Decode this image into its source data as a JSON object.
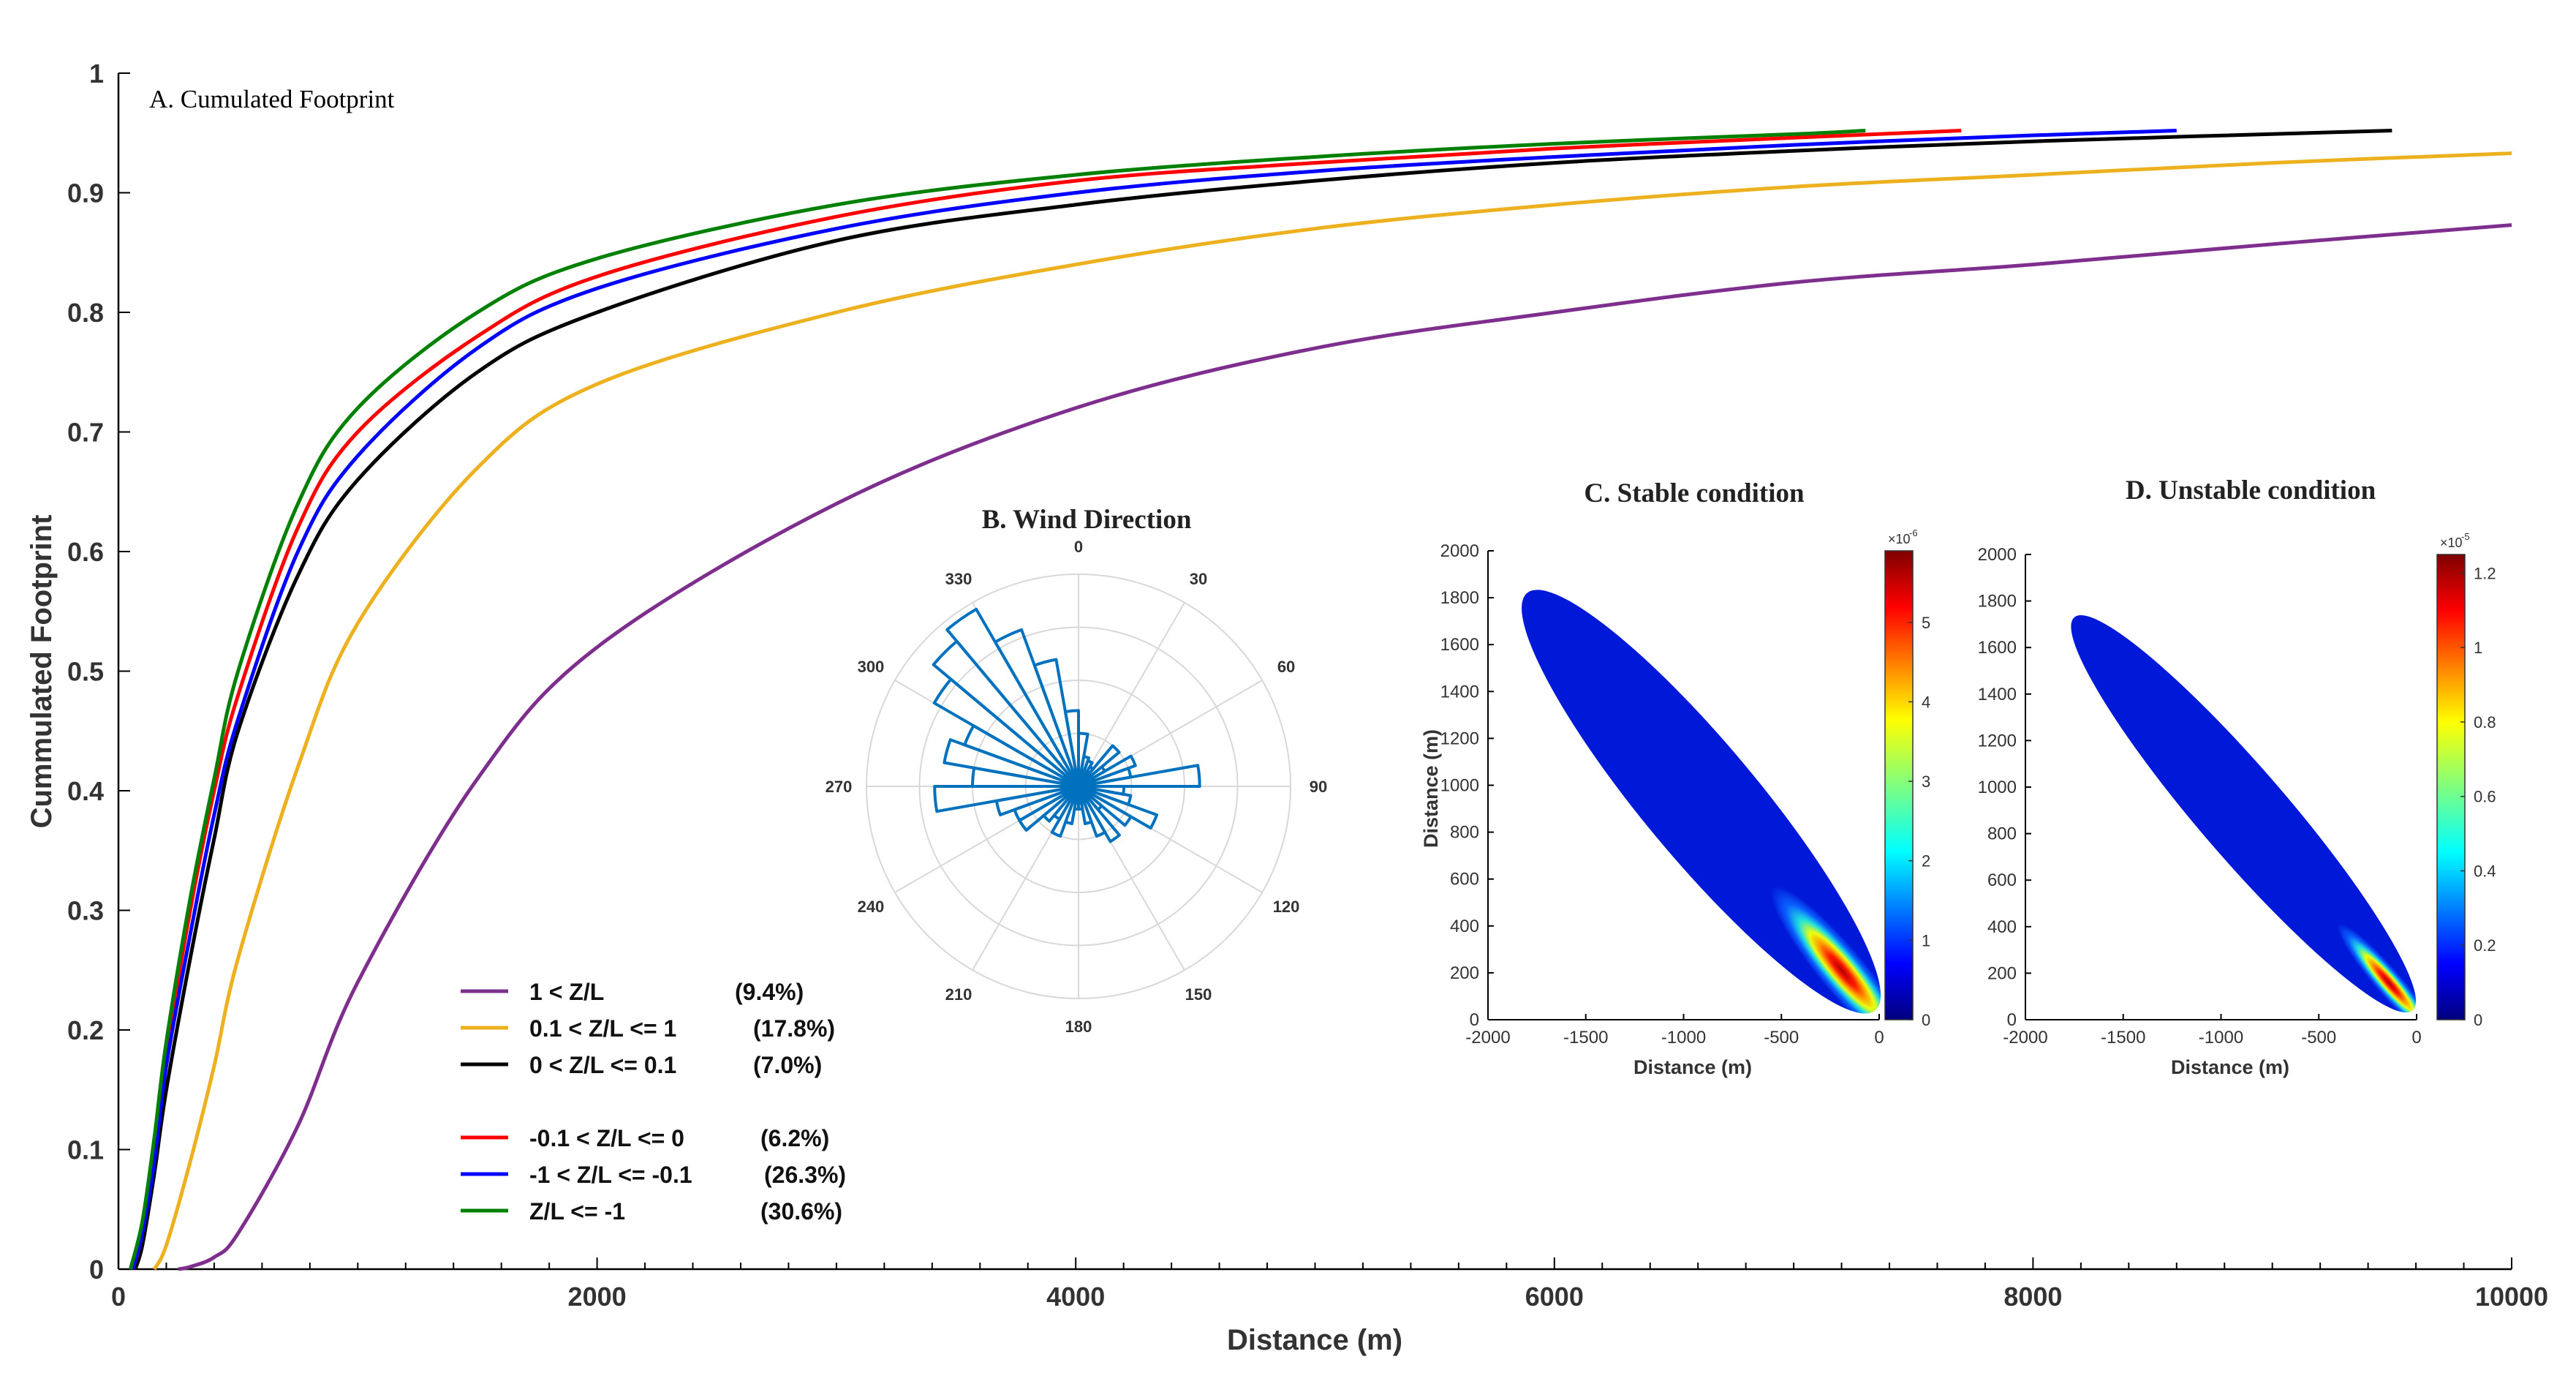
{
  "chart_data": [
    {
      "panel": "A",
      "type": "line",
      "title": "A. Cumulated Footprint",
      "xlabel": "Distance (m)",
      "ylabel": "Cummulated Footprint",
      "xlim": [
        0,
        10000
      ],
      "ylim": [
        0,
        1
      ],
      "x_ticks": [
        "0",
        "2000",
        "4000",
        "6000",
        "8000",
        "10000"
      ],
      "y_ticks": [
        "0",
        "0.1",
        "0.2",
        "0.3",
        "0.4",
        "0.5",
        "0.6",
        "0.7",
        "0.8",
        "0.9",
        "1"
      ],
      "grid": false,
      "legend_position": "lower-left",
      "series": [
        {
          "name": "1 < Z/L",
          "share": "(9.4%)",
          "color": "#7e2f8e",
          "x": [
            250,
            300,
            400,
            500,
            750,
            1000,
            1500,
            2000,
            3000,
            4000,
            5000,
            6000,
            7000,
            8000,
            9000,
            10000
          ],
          "y": [
            0,
            0.002,
            0.01,
            0.03,
            0.12,
            0.24,
            0.41,
            0.52,
            0.64,
            0.72,
            0.77,
            0.8,
            0.825,
            0.84,
            0.857,
            0.873
          ]
        },
        {
          "name": "0.1 < Z/L <= 1",
          "share": "(17.8%)",
          "color": "#edb120",
          "x": [
            150,
            200,
            300,
            400,
            500,
            750,
            1000,
            1500,
            2000,
            3000,
            4000,
            5000,
            6000,
            7000,
            8000,
            9000,
            10000
          ],
          "y": [
            0,
            0.02,
            0.09,
            0.17,
            0.26,
            0.42,
            0.54,
            0.67,
            0.74,
            0.8,
            0.84,
            0.87,
            0.89,
            0.905,
            0.915,
            0.925,
            0.933
          ]
        },
        {
          "name": "0 < Z/L <= 0.1",
          "share": "(7.0%)",
          "color": "#000000",
          "x": [
            70,
            100,
            150,
            200,
            300,
            400,
            500,
            750,
            1000,
            1500,
            2000,
            3000,
            4000,
            5000,
            6000,
            7000,
            8000,
            9500
          ],
          "y": [
            0,
            0.02,
            0.08,
            0.15,
            0.26,
            0.36,
            0.45,
            0.58,
            0.66,
            0.75,
            0.8,
            0.86,
            0.89,
            0.91,
            0.925,
            0.935,
            0.943,
            0.952
          ]
        },
        {
          "name": "-0.1 < Z/L <= 0",
          "share": "(6.2%)",
          "color": "#ff0000",
          "x": [
            60,
            100,
            150,
            200,
            300,
            400,
            500,
            750,
            1000,
            1500,
            2000,
            3000,
            4000,
            5000,
            6000,
            7000,
            7700
          ],
          "y": [
            0,
            0.03,
            0.1,
            0.18,
            0.3,
            0.4,
            0.48,
            0.62,
            0.7,
            0.78,
            0.83,
            0.88,
            0.91,
            0.925,
            0.937,
            0.946,
            0.952
          ]
        },
        {
          "name": "-1 < Z/L <= -0.1",
          "share": "(26.3%)",
          "color": "#0000ff",
          "x": [
            60,
            100,
            150,
            200,
            300,
            400,
            500,
            750,
            1000,
            1500,
            2000,
            3000,
            4000,
            5000,
            6000,
            7000,
            8000,
            8600
          ],
          "y": [
            0,
            0.03,
            0.09,
            0.17,
            0.28,
            0.38,
            0.46,
            0.6,
            0.68,
            0.77,
            0.82,
            0.87,
            0.9,
            0.918,
            0.93,
            0.94,
            0.948,
            0.952
          ]
        },
        {
          "name": "Z/L <= -1",
          "share": "(30.6%)",
          "color": "#008000",
          "x": [
            50,
            100,
            150,
            200,
            300,
            400,
            500,
            750,
            1000,
            1500,
            2000,
            3000,
            4000,
            5000,
            6000,
            7000,
            7300
          ],
          "y": [
            0,
            0.04,
            0.11,
            0.19,
            0.31,
            0.41,
            0.5,
            0.64,
            0.72,
            0.8,
            0.845,
            0.89,
            0.915,
            0.93,
            0.941,
            0.949,
            0.952
          ]
        }
      ]
    },
    {
      "panel": "B",
      "type": "polar-histogram",
      "title": "B. Wind Direction",
      "angle_ticks": [
        "0",
        "30",
        "60",
        "90",
        "120",
        "150",
        "180",
        "210",
        "240",
        "270",
        "300",
        "330"
      ],
      "color": "#0072bd",
      "bin_width_deg": 10,
      "bins": [
        {
          "center": 5,
          "value": 0.35
        },
        {
          "center": 15,
          "value": 0.2
        },
        {
          "center": 25,
          "value": 0.18
        },
        {
          "center": 35,
          "value": 0.15
        },
        {
          "center": 45,
          "value": 0.35
        },
        {
          "center": 55,
          "value": 0.2
        },
        {
          "center": 65,
          "value": 0.4
        },
        {
          "center": 75,
          "value": 0.35
        },
        {
          "center": 85,
          "value": 0.8
        },
        {
          "center": 95,
          "value": 0.3
        },
        {
          "center": 105,
          "value": 0.35
        },
        {
          "center": 115,
          "value": 0.55
        },
        {
          "center": 125,
          "value": 0.4
        },
        {
          "center": 135,
          "value": 0.2
        },
        {
          "center": 145,
          "value": 0.42
        },
        {
          "center": 155,
          "value": 0.35
        },
        {
          "center": 165,
          "value": 0.25
        },
        {
          "center": 175,
          "value": 0.15
        },
        {
          "center": 185,
          "value": 0.15
        },
        {
          "center": 195,
          "value": 0.25
        },
        {
          "center": 205,
          "value": 0.35
        },
        {
          "center": 215,
          "value": 0.25
        },
        {
          "center": 225,
          "value": 0.3
        },
        {
          "center": 235,
          "value": 0.45
        },
        {
          "center": 245,
          "value": 0.45
        },
        {
          "center": 255,
          "value": 0.55
        },
        {
          "center": 265,
          "value": 0.95
        },
        {
          "center": 275,
          "value": 0.7
        },
        {
          "center": 285,
          "value": 0.9
        },
        {
          "center": 295,
          "value": 0.8
        },
        {
          "center": 305,
          "value": 1.1
        },
        {
          "center": 315,
          "value": 1.25
        },
        {
          "center": 325,
          "value": 1.35
        },
        {
          "center": 335,
          "value": 1.1
        },
        {
          "center": 345,
          "value": 0.85
        },
        {
          "center": 355,
          "value": 0.5
        }
      ]
    },
    {
      "panel": "C",
      "type": "heatmap",
      "title": "C. Stable condition",
      "xlabel": "Distance (m)",
      "ylabel": "Distance (m)",
      "xlim": [
        -2000,
        0
      ],
      "ylim": [
        0,
        2000
      ],
      "x_ticks": [
        "-2000",
        "-1500",
        "-1000",
        "-500",
        "0"
      ],
      "y_ticks": [
        "0",
        "200",
        "400",
        "600",
        "800",
        "1000",
        "1200",
        "1400",
        "1600",
        "1800",
        "2000"
      ],
      "colorbar_exponent": "×10",
      "colorbar_power": "-6",
      "colorbar_ticks": [
        "0",
        "1",
        "2",
        "3",
        "4",
        "5"
      ],
      "colorbar_max": 5.9,
      "peak": {
        "x": -200,
        "y": 180
      },
      "footprint_tip": {
        "x": -1800,
        "y": 1820
      }
    },
    {
      "panel": "D",
      "type": "heatmap",
      "title": "D. Unstable condition",
      "xlabel": "Distance (m)",
      "ylabel": "",
      "xlim": [
        -2000,
        0
      ],
      "ylim": [
        0,
        2000
      ],
      "x_ticks": [
        "-2000",
        "-1500",
        "-1000",
        "-500",
        "0"
      ],
      "y_ticks": [
        "0",
        "200",
        "400",
        "600",
        "800",
        "1000",
        "1200",
        "1400",
        "1600",
        "1800",
        "2000"
      ],
      "colorbar_exponent": "×10",
      "colorbar_power": "-5",
      "colorbar_ticks": [
        "0",
        "0.2",
        "0.4",
        "0.6",
        "0.8",
        "1",
        "1.2"
      ],
      "colorbar_max": 1.25,
      "peak": {
        "x": -130,
        "y": 140
      },
      "footprint_tip": {
        "x": -1750,
        "y": 1730
      }
    }
  ]
}
